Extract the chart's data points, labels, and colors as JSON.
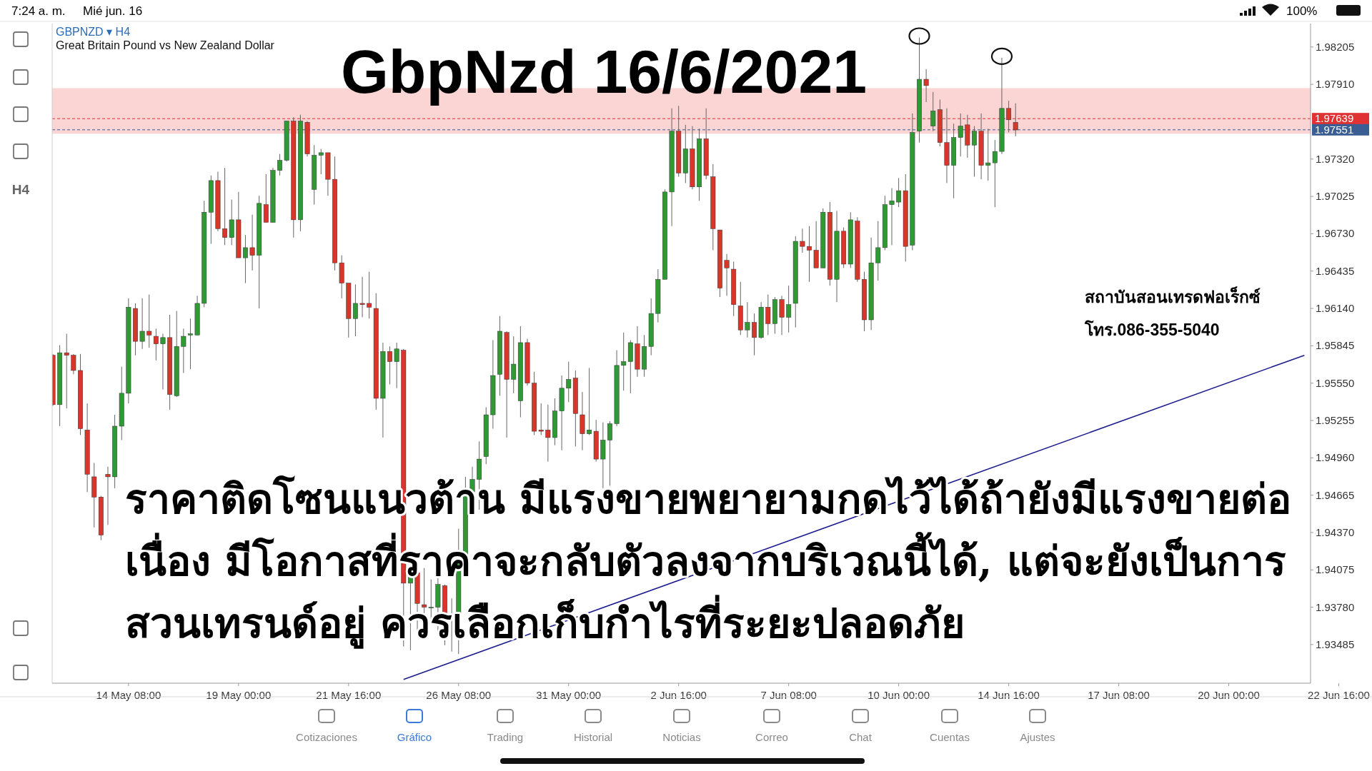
{
  "chart_data": {
    "type": "candlestick",
    "title": "GbpNzd 16/6/2021",
    "subtitle": "Great Britain Pound vs New Zealand Dollar",
    "categories": [
      null,
      null,
      null,
      null,
      null,
      null,
      null,
      null,
      null,
      null,
      null,
      "14 May 08:00",
      null,
      null,
      null,
      null,
      null,
      null,
      null,
      null,
      null,
      null,
      null,
      null,
      null,
      null,
      null,
      "19 May 00:00",
      null,
      null,
      null,
      null,
      null,
      null,
      null,
      null,
      null,
      null,
      null,
      null,
      null,
      null,
      null,
      "21 May 16:00",
      null,
      null,
      null,
      null,
      null,
      null,
      null,
      null,
      null,
      null,
      null,
      null,
      null,
      null,
      null,
      "26 May 08:00",
      null,
      null,
      null,
      null,
      null,
      null,
      null,
      null,
      null,
      null,
      null,
      null,
      null,
      null,
      null,
      "31 May 00:00",
      null,
      null,
      null,
      null,
      null,
      null,
      null,
      null,
      null,
      null,
      null,
      null,
      null,
      null,
      null,
      "2 Jun 16:00",
      null,
      null,
      null,
      null,
      null,
      null,
      null,
      null,
      null,
      null,
      null,
      null,
      null,
      null,
      null,
      "7 Jun 08:00",
      null,
      null,
      null,
      null,
      null,
      null,
      null,
      null,
      null,
      null,
      null,
      null,
      null,
      null,
      null,
      "10 Jun 00:00",
      null,
      null,
      null,
      null,
      null,
      null,
      null,
      null,
      null,
      null,
      null,
      null,
      null,
      null,
      null,
      "14 Jun 16:00",
      null,
      null,
      null,
      null,
      null,
      null,
      null,
      null,
      null,
      null,
      null,
      null,
      null,
      null,
      null,
      "17 Jun 08:00",
      null,
      null,
      null,
      null,
      null,
      null,
      null,
      null,
      null,
      null,
      null,
      null,
      null,
      null,
      null,
      "20 Jun 00:00",
      null,
      null,
      null,
      null,
      null,
      null,
      null,
      null,
      null,
      null,
      null,
      null,
      null,
      null,
      null,
      "22 Jun 16:00"
    ],
    "ohlc": [
      [
        1.9577,
        1.9578,
        1.9537,
        1.9538
      ],
      [
        1.9538,
        1.9585,
        1.9521,
        1.9579
      ],
      [
        1.9579,
        1.9594,
        1.9535,
        1.9577
      ],
      [
        1.9577,
        1.9578,
        1.9562,
        1.9565
      ],
      [
        1.9565,
        1.9578,
        1.9514,
        1.9519
      ],
      [
        1.9518,
        1.9539,
        1.9469,
        1.9483
      ],
      [
        1.9481,
        1.9492,
        1.9441,
        1.9465
      ],
      [
        1.9465,
        1.9466,
        1.9431,
        1.9435
      ],
      [
        1.9483,
        1.9489,
        1.9443,
        1.9481
      ],
      [
        1.9481,
        1.953,
        1.9472,
        1.9521
      ],
      [
        1.9521,
        1.9568,
        1.951,
        1.9547
      ],
      [
        1.9547,
        1.9622,
        1.9539,
        1.9615
      ],
      [
        1.9614,
        1.9618,
        1.9577,
        1.9588
      ],
      [
        1.9588,
        1.9622,
        1.9582,
        1.9596
      ],
      [
        1.9596,
        1.9625,
        1.9583,
        1.9593
      ],
      [
        1.9592,
        1.9598,
        1.9573,
        1.9586
      ],
      [
        1.9586,
        1.9594,
        1.955,
        1.9591
      ],
      [
        1.9591,
        1.9609,
        1.9534,
        1.9546
      ],
      [
        1.9545,
        1.9612,
        1.9544,
        1.9584
      ],
      [
        1.9584,
        1.9598,
        1.9563,
        1.9592
      ],
      [
        1.9593,
        1.9606,
        1.9566,
        1.9594
      ],
      [
        1.9593,
        1.9624,
        1.9593,
        1.9618
      ],
      [
        1.9618,
        1.9699,
        1.9615,
        1.969
      ],
      [
        1.969,
        1.9719,
        1.9665,
        1.9715
      ],
      [
        1.9715,
        1.9722,
        1.9675,
        1.9677
      ],
      [
        1.9677,
        1.9725,
        1.9664,
        1.967
      ],
      [
        1.967,
        1.97,
        1.9664,
        1.9684
      ],
      [
        1.9684,
        1.9706,
        1.9654,
        1.9654
      ],
      [
        1.9654,
        1.9672,
        1.9634,
        1.9662
      ],
      [
        1.9662,
        1.9688,
        1.9644,
        1.9656
      ],
      [
        1.9656,
        1.9703,
        1.9614,
        1.9697
      ],
      [
        1.9696,
        1.972,
        1.9682,
        1.9682
      ],
      [
        1.9682,
        1.9725,
        1.9682,
        1.9723
      ],
      [
        1.9723,
        1.9736,
        1.9719,
        1.9731
      ],
      [
        1.9731,
        1.9762,
        1.973,
        1.9762
      ],
      [
        1.9762,
        1.9765,
        1.967,
        1.9684
      ],
      [
        1.9684,
        1.9767,
        1.9675,
        1.9762
      ],
      [
        1.9761,
        1.9762,
        1.9734,
        1.9736
      ],
      [
        1.9708,
        1.9743,
        1.9696,
        1.9735
      ],
      [
        1.9735,
        1.974,
        1.972,
        1.9737
      ],
      [
        1.9737,
        1.9737,
        1.9703,
        1.9716
      ],
      [
        1.9716,
        1.9734,
        1.9644,
        1.965
      ],
      [
        1.965,
        1.9656,
        1.9622,
        1.9634
      ],
      [
        1.9634,
        1.9634,
        1.9591,
        1.9606
      ],
      [
        1.9606,
        1.9633,
        1.9592,
        1.9618
      ],
      [
        1.9618,
        1.9639,
        1.9607,
        1.9617
      ],
      [
        1.9618,
        1.9643,
        1.9606,
        1.9615
      ],
      [
        1.9614,
        1.9626,
        1.9534,
        1.9543
      ],
      [
        1.9543,
        1.9587,
        1.9512,
        1.958
      ],
      [
        1.958,
        1.9584,
        1.9554,
        1.9572
      ],
      [
        1.9572,
        1.9587,
        1.9551,
        1.9582
      ],
      [
        1.9581,
        1.9582,
        1.9347,
        1.9397
      ],
      [
        1.9397,
        1.9409,
        1.9344,
        1.9405
      ],
      [
        1.9405,
        1.9409,
        1.9355,
        1.9381
      ],
      [
        1.938,
        1.9409,
        1.9364,
        1.9378
      ],
      [
        1.9378,
        1.94,
        1.9366,
        1.9378
      ],
      [
        1.9378,
        1.9401,
        1.9358,
        1.9396
      ],
      [
        1.9395,
        1.9396,
        1.9348,
        1.9369
      ],
      [
        1.9369,
        1.9385,
        1.9343,
        1.9371
      ],
      [
        1.9369,
        1.944,
        1.9341,
        1.9414
      ],
      [
        1.9414,
        1.9481,
        1.9409,
        1.9469
      ],
      [
        1.9469,
        1.9489,
        1.9462,
        1.9479
      ],
      [
        1.9479,
        1.9509,
        1.9455,
        1.9495
      ],
      [
        1.9497,
        1.9536,
        1.9491,
        1.953
      ],
      [
        1.953,
        1.9589,
        1.9519,
        1.9561
      ],
      [
        1.9562,
        1.9608,
        1.9545,
        1.9596
      ],
      [
        1.9595,
        1.9596,
        1.9512,
        1.9558
      ],
      [
        1.9558,
        1.9592,
        1.9547,
        1.957
      ],
      [
        1.9541,
        1.96,
        1.9528,
        1.9587
      ],
      [
        1.9587,
        1.959,
        1.9553,
        1.9555
      ],
      [
        1.9555,
        1.9564,
        1.9514,
        1.9517
      ],
      [
        1.9518,
        1.9539,
        1.9514,
        1.9517
      ],
      [
        1.9518,
        1.9538,
        1.9493,
        1.9512
      ],
      [
        1.9512,
        1.9543,
        1.9506,
        1.9533
      ],
      [
        1.9533,
        1.9561,
        1.9502,
        1.9551
      ],
      [
        1.9551,
        1.9572,
        1.954,
        1.9558
      ],
      [
        1.9559,
        1.9565,
        1.9505,
        1.9531
      ],
      [
        1.953,
        1.9548,
        1.9502,
        1.9515
      ],
      [
        1.9515,
        1.9567,
        1.9514,
        1.9518
      ],
      [
        1.9517,
        1.9526,
        1.9493,
        1.9495
      ],
      [
        1.9495,
        1.9524,
        1.9472,
        1.951
      ],
      [
        1.951,
        1.9525,
        1.9474,
        1.9523
      ],
      [
        1.9523,
        1.9581,
        1.9521,
        1.9569
      ],
      [
        1.9569,
        1.9595,
        1.9549,
        1.9572
      ],
      [
        1.9572,
        1.9589,
        1.9547,
        1.9587
      ],
      [
        1.9586,
        1.96,
        1.956,
        1.9566
      ],
      [
        1.9566,
        1.9593,
        1.956,
        1.9584
      ],
      [
        1.9584,
        1.9622,
        1.9577,
        1.961
      ],
      [
        1.961,
        1.9645,
        1.9603,
        1.9637
      ],
      [
        1.9637,
        1.9708,
        1.9637,
        1.9706
      ],
      [
        1.9706,
        1.9772,
        1.9679,
        1.9754
      ],
      [
        1.9754,
        1.9774,
        1.9718,
        1.9721
      ],
      [
        1.9721,
        1.9759,
        1.9713,
        1.974
      ],
      [
        1.974,
        1.9758,
        1.9708,
        1.971
      ],
      [
        1.971,
        1.9756,
        1.9699,
        1.9748
      ],
      [
        1.9748,
        1.9772,
        1.9716,
        1.9719
      ],
      [
        1.9718,
        1.9728,
        1.966,
        1.9677
      ],
      [
        1.9676,
        1.9676,
        1.9623,
        1.963
      ],
      [
        1.9652,
        1.9657,
        1.9624,
        1.9646
      ],
      [
        1.9645,
        1.9651,
        1.9608,
        1.9617
      ],
      [
        1.9616,
        1.9635,
        1.9593,
        1.9597
      ],
      [
        1.9597,
        1.9619,
        1.9591,
        1.9603
      ],
      [
        1.9603,
        1.961,
        1.9577,
        1.9591
      ],
      [
        1.9591,
        1.9619,
        1.959,
        1.9615
      ],
      [
        1.9615,
        1.9625,
        1.9593,
        1.9602
      ],
      [
        1.9602,
        1.9623,
        1.9594,
        1.9621
      ],
      [
        1.9621,
        1.9624,
        1.9593,
        1.9607
      ],
      [
        1.9607,
        1.9632,
        1.9595,
        1.9617
      ],
      [
        1.9618,
        1.9671,
        1.9599,
        1.9667
      ],
      [
        1.9667,
        1.9677,
        1.9658,
        1.9663
      ],
      [
        1.9663,
        1.9679,
        1.9635,
        1.966
      ],
      [
        1.966,
        1.9683,
        1.9646,
        1.9646
      ],
      [
        1.9646,
        1.9693,
        1.9646,
        1.969
      ],
      [
        1.969,
        1.9698,
        1.9632,
        1.9637
      ],
      [
        1.9637,
        1.9691,
        1.9619,
        1.9675
      ],
      [
        1.9675,
        1.9678,
        1.9646,
        1.9649
      ],
      [
        1.9649,
        1.969,
        1.9646,
        1.9684
      ],
      [
        1.9683,
        1.9686,
        1.9635,
        1.9637
      ],
      [
        1.9637,
        1.9643,
        1.9596,
        1.9605
      ],
      [
        1.9605,
        1.967,
        1.9597,
        1.965
      ],
      [
        1.965,
        1.9683,
        1.9636,
        1.9662
      ],
      [
        1.9662,
        1.9703,
        1.966,
        1.9696
      ],
      [
        1.9696,
        1.9709,
        1.9664,
        1.9699
      ],
      [
        1.9698,
        1.9717,
        1.9694,
        1.9707
      ],
      [
        1.9707,
        1.972,
        1.9651,
        1.9663
      ],
      [
        1.9664,
        1.9768,
        1.966,
        1.9753
      ],
      [
        1.9754,
        1.9828,
        1.9745,
        1.9795
      ],
      [
        1.9795,
        1.9803,
        1.9777,
        1.979
      ],
      [
        1.9758,
        1.9785,
        1.9754,
        1.977
      ],
      [
        1.9771,
        1.9779,
        1.9742,
        1.9745
      ],
      [
        1.9745,
        1.9772,
        1.9713,
        1.9727
      ],
      [
        1.9727,
        1.976,
        1.9701,
        1.9749
      ],
      [
        1.9749,
        1.9768,
        1.9734,
        1.9758
      ],
      [
        1.9759,
        1.9767,
        1.9733,
        1.9743
      ],
      [
        1.9743,
        1.9758,
        1.9718,
        1.9754
      ],
      [
        1.9754,
        1.9768,
        1.9716,
        1.9727
      ],
      [
        1.9727,
        1.9756,
        1.9715,
        1.9729
      ],
      [
        1.9729,
        1.9747,
        1.9694,
        1.9738
      ],
      [
        1.9738,
        1.9812,
        1.9736,
        1.9772
      ],
      [
        1.9772,
        1.9778,
        1.9753,
        1.9763
      ],
      [
        1.9761,
        1.9776,
        1.975,
        1.9755
      ],
      null,
      null,
      null,
      null,
      null,
      null,
      null,
      null,
      null,
      null,
      null,
      null,
      null,
      null,
      null,
      null,
      null,
      null,
      null,
      null,
      null,
      null,
      null,
      null,
      null,
      null,
      null,
      null,
      null,
      null,
      null,
      null,
      null,
      null,
      null,
      null,
      null,
      null,
      null,
      null,
      null,
      null,
      null,
      null,
      null,
      null,
      null
    ],
    "series": [
      {
        "type": "line",
        "color": "#1c1c8f",
        "values": [
          null,
          null,
          null,
          null,
          null,
          null,
          null,
          null,
          null,
          null,
          null,
          null,
          null,
          null,
          null,
          null,
          null,
          null,
          null,
          null,
          null,
          null,
          null,
          null,
          null,
          null,
          null,
          null,
          null,
          null,
          null,
          null,
          null,
          null,
          null,
          null,
          null,
          null,
          null,
          null,
          null,
          null,
          null,
          null,
          null,
          null,
          null,
          null,
          null,
          null,
          null,
          1.9321,
          null,
          null,
          null,
          null,
          null,
          null,
          null,
          null,
          null,
          null,
          null,
          null,
          null,
          null,
          null,
          null,
          null,
          null,
          null,
          null,
          null,
          null,
          null,
          null,
          null,
          null,
          null,
          null,
          null,
          null,
          null,
          null,
          null,
          null,
          null,
          null,
          null,
          null,
          null,
          null,
          null,
          null,
          null,
          null,
          null,
          null,
          null,
          null,
          null,
          null,
          null,
          null,
          null,
          null,
          null,
          null,
          null,
          null,
          null,
          null,
          null,
          null,
          null,
          null,
          null,
          null,
          null,
          null,
          null,
          null,
          null,
          null,
          null,
          null,
          null,
          null,
          null,
          null,
          null,
          null,
          null,
          null,
          null,
          null,
          null,
          null,
          null,
          null,
          null,
          null,
          null,
          null,
          null,
          null,
          null,
          null,
          null,
          null,
          null,
          null,
          null,
          null,
          null,
          null,
          null,
          null,
          null,
          null,
          null,
          null,
          null,
          null,
          null,
          null,
          null,
          null,
          null,
          null,
          null,
          null,
          null,
          null,
          null,
          null,
          null,
          null,
          null,
          null,
          null,
          null,
          1.9577,
          null,
          null,
          null,
          null,
          null
        ]
      }
    ],
    "ylim": [
      1.9318,
      1.9839
    ],
    "yticks": [
      1.98205,
      {
        "value": 1.9791,
        "label": "1.97910"
      },
      {
        "value": 1.9732,
        "label": "1.97320"
      },
      1.97025,
      {
        "value": 1.9673,
        "label": "1.96730"
      },
      1.96435,
      {
        "value": 1.9614,
        "label": "1.96140"
      },
      1.95845,
      {
        "value": 1.9555,
        "label": "1.95550"
      },
      1.95255,
      {
        "value": 1.9496,
        "label": "1.94960"
      },
      1.94665,
      {
        "value": 1.9437,
        "label": "1.94370"
      },
      1.94075,
      {
        "value": 1.9378,
        "label": "1.93780"
      },
      1.93485
    ],
    "ref_lines": [
      {
        "axis": "y",
        "value": 1.97639,
        "label": "1.97639",
        "color": "#e03232",
        "line_style": "dashed"
      },
      {
        "axis": "y",
        "value": 1.97551,
        "label": "1.97551",
        "color": "#3a5d94",
        "line_style": "dashed"
      }
    ],
    "bands": [
      {
        "axis": "y",
        "from": 1.9752,
        "to": 1.9788,
        "color": "#fbcfcf"
      }
    ],
    "annotations": [
      "7:24 a. m.",
      "Mié jun. 16",
      "100%",
      "GBPNZD ▾ H4",
      "H4",
      "ราคาติดโซนแนวต้าน มีแรงขายพยายามกดไว้ได้ถ้ายังมีแรงขายต่อ\nเนื่อง มีโอกาสที่ราคาจะกลับตัวลงจากบริเวณนี้ได้, แต่จะยังเป็นการ\nสวนเทรนด์อยู่ ควรเลือกเก็บกำไรที่ระยะปลอดภัย",
      "สถาบันสอนเทรดฟอเร็กซ์",
      "โทร.086-355-5040",
      "Cotizaciones",
      "Gráfico",
      "Trading",
      "Historial",
      "Noticias",
      "Correo",
      "Chat",
      "Cuentas",
      "Ajustes"
    ]
  }
}
